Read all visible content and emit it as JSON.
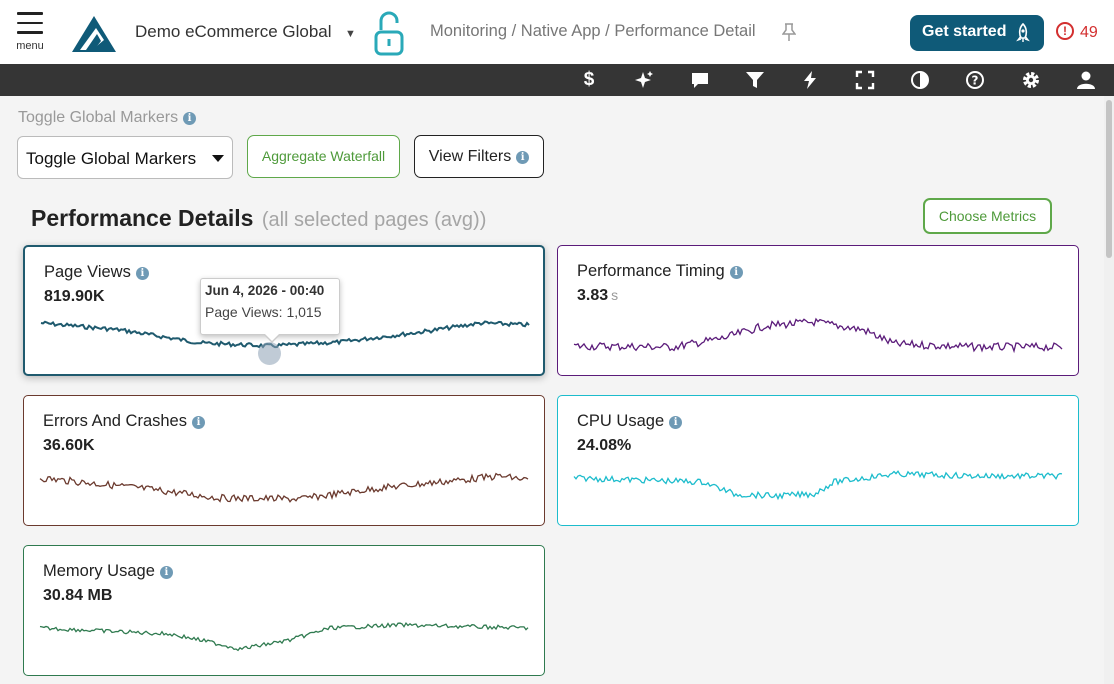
{
  "header": {
    "menu_label": "menu",
    "app_name": "Demo eCommerce Global",
    "breadcrumb": "Monitoring / Native App / Performance Detail",
    "get_started_label": "Get started",
    "alert_count": "49",
    "brand_color": "#0f5a78",
    "alert_color": "#d32f2f"
  },
  "toolbar": {
    "icons": [
      "dollar-icon",
      "sparkles-icon",
      "chat-icon",
      "filter-icon",
      "lightning-icon",
      "fullscreen-icon",
      "contrast-icon",
      "help-icon",
      "gear-icon",
      "user-icon"
    ]
  },
  "controls": {
    "toggle_markers_label": "Toggle Global Markers",
    "toggle_markers_value": "Toggle Global Markers",
    "aggregate_waterfall_label": "Aggregate Waterfall",
    "view_filters_label": "View Filters",
    "choose_metrics_label": "Choose Metrics"
  },
  "section": {
    "title": "Performance Details",
    "subtitle": "(all selected pages (avg))"
  },
  "cards": [
    {
      "title": "Page Views",
      "value": "819.90K",
      "unit": "",
      "color": "#1f5a6e"
    },
    {
      "title": "Performance Timing",
      "value": "3.83",
      "unit": "s",
      "color": "#5b1b7a"
    },
    {
      "title": "Errors And Crashes",
      "value": "36.60K",
      "unit": "",
      "color": "#6b3a2e"
    },
    {
      "title": "CPU Usage",
      "value": "24.08%",
      "unit": "",
      "color": "#1cbccc"
    },
    {
      "title": "Memory Usage",
      "value": "30.84 MB",
      "unit": "",
      "color": "#2f7a4f"
    }
  ],
  "tooltip": {
    "date": "Jun 4, 2026 - 00:40",
    "text": "Page Views: 1,015"
  }
}
